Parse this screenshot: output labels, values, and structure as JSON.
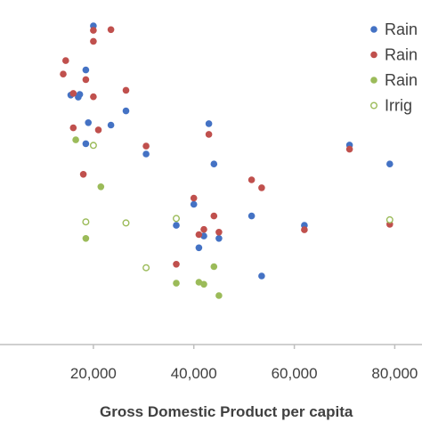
{
  "chart_data": {
    "type": "scatter",
    "xlabel": "Gross Domestic Product per capita",
    "x_ticks": [
      "20,000",
      "40,000",
      "60,000",
      "80,000"
    ],
    "x_tick_values": [
      20000,
      40000,
      60000,
      80000
    ],
    "xlim": [
      0,
      84000
    ],
    "ylim": [
      0,
      100
    ],
    "grid": false,
    "legend_position": "top-right",
    "series": [
      {
        "name": "Rain",
        "color": "#4472c4",
        "marker": "filled",
        "points": [
          {
            "x": 20000,
            "y": 92.5
          },
          {
            "x": 18500,
            "y": 79.7
          },
          {
            "x": 17300,
            "y": 72.6
          },
          {
            "x": 15500,
            "y": 72.4
          },
          {
            "x": 17000,
            "y": 71.8
          },
          {
            "x": 19000,
            "y": 64.4
          },
          {
            "x": 23500,
            "y": 63.7
          },
          {
            "x": 26500,
            "y": 67.8
          },
          {
            "x": 18500,
            "y": 58.3
          },
          {
            "x": 30500,
            "y": 55.3
          },
          {
            "x": 43000,
            "y": 64.1
          },
          {
            "x": 44000,
            "y": 52.4
          },
          {
            "x": 40000,
            "y": 40.7
          },
          {
            "x": 36500,
            "y": 34.6
          },
          {
            "x": 42000,
            "y": 31.5
          },
          {
            "x": 41000,
            "y": 28.1
          },
          {
            "x": 45000,
            "y": 30.8
          },
          {
            "x": 51500,
            "y": 37.3
          },
          {
            "x": 53500,
            "y": 19.9
          },
          {
            "x": 62000,
            "y": 34.6
          },
          {
            "x": 71000,
            "y": 57.9
          },
          {
            "x": 79000,
            "y": 52.4
          }
        ]
      },
      {
        "name": "Rain",
        "color": "#c0504d",
        "marker": "filled",
        "points": [
          {
            "x": 23500,
            "y": 91.4
          },
          {
            "x": 20000,
            "y": 91.2
          },
          {
            "x": 20000,
            "y": 88.0
          },
          {
            "x": 14500,
            "y": 82.4
          },
          {
            "x": 14000,
            "y": 78.5
          },
          {
            "x": 18500,
            "y": 76.9
          },
          {
            "x": 16000,
            "y": 72.9
          },
          {
            "x": 20000,
            "y": 71.9
          },
          {
            "x": 26500,
            "y": 73.8
          },
          {
            "x": 16000,
            "y": 62.9
          },
          {
            "x": 21000,
            "y": 62.3
          },
          {
            "x": 30500,
            "y": 57.6
          },
          {
            "x": 43000,
            "y": 61.0
          },
          {
            "x": 18000,
            "y": 49.4
          },
          {
            "x": 51500,
            "y": 47.8
          },
          {
            "x": 53500,
            "y": 45.5
          },
          {
            "x": 40000,
            "y": 42.5
          },
          {
            "x": 44000,
            "y": 37.3
          },
          {
            "x": 42000,
            "y": 33.4
          },
          {
            "x": 41000,
            "y": 31.9
          },
          {
            "x": 45000,
            "y": 32.6
          },
          {
            "x": 36500,
            "y": 23.3
          },
          {
            "x": 62000,
            "y": 33.3
          },
          {
            "x": 71000,
            "y": 56.7
          },
          {
            "x": 79000,
            "y": 34.9
          }
        ]
      },
      {
        "name": "Rain",
        "color": "#9bbb59",
        "marker": "filled",
        "points": [
          {
            "x": 16500,
            "y": 59.4
          },
          {
            "x": 21500,
            "y": 45.8
          },
          {
            "x": 18500,
            "y": 30.8
          },
          {
            "x": 36500,
            "y": 17.8
          },
          {
            "x": 41000,
            "y": 18.1
          },
          {
            "x": 42000,
            "y": 17.5
          },
          {
            "x": 45000,
            "y": 14.2
          },
          {
            "x": 44000,
            "y": 22.6
          }
        ]
      },
      {
        "name": "Irrig",
        "color": "#9bbb59",
        "marker": "hollow",
        "points": [
          {
            "x": 20000,
            "y": 57.8
          },
          {
            "x": 18500,
            "y": 35.6
          },
          {
            "x": 26500,
            "y": 35.3
          },
          {
            "x": 30500,
            "y": 22.3
          },
          {
            "x": 36500,
            "y": 36.6
          },
          {
            "x": 79000,
            "y": 36.2
          }
        ]
      }
    ]
  }
}
